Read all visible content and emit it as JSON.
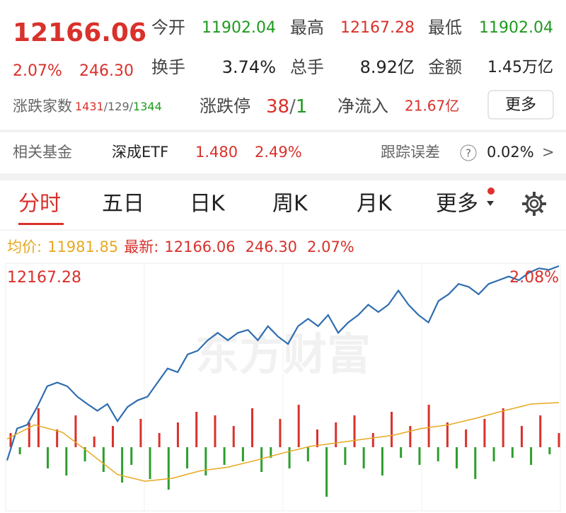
{
  "header": {
    "price": "12166.06",
    "change_pct": "2.07%",
    "change": "246.30"
  },
  "stats": [
    {
      "label": "今开",
      "value": "11902.04"
    },
    {
      "label": "最高",
      "value": "12167.28"
    },
    {
      "label": "最低",
      "value": "11902.04"
    },
    {
      "label": "换手",
      "value": "3.74%"
    },
    {
      "label": "总手",
      "value": "8.92亿"
    },
    {
      "label": "金额",
      "value": "1.45万亿"
    }
  ],
  "breadth": {
    "label": "涨跌家数",
    "up": "1431",
    "flat": "129",
    "down": "1344",
    "separator": "/"
  },
  "limits": {
    "label": "涨跌停",
    "up": "38",
    "down": "1"
  },
  "netflow": {
    "label": "净流入",
    "value": "21.67亿"
  },
  "more_button": "更多",
  "fund": {
    "label": "相关基金",
    "name": "深成ETF",
    "price": "1.480",
    "change_pct": "2.49%",
    "tracking_label": "跟踪误差",
    "help": "?",
    "tracking_value": "0.02%",
    "arrow": ">"
  },
  "tabs": [
    "分时",
    "五日",
    "日K",
    "周K",
    "月K",
    "更多"
  ],
  "quote_line": {
    "avg_label": "均价:",
    "avg": "11981.85",
    "latest_label": "最新:",
    "latest": "12166.06",
    "change": "246.30",
    "change_pct": "2.07%"
  },
  "chart_data": {
    "type": "line",
    "top_label": "12167.28",
    "top_right_label": "2.08%",
    "watermark": "东方财富",
    "ylim": [
      11858,
      12168
    ],
    "series": [
      {
        "color": "#2f6db0",
        "values": [
          11905,
          11948,
          11953,
          11977,
          12005,
          12010,
          12005,
          11991,
          11981,
          11972,
          11981,
          11958,
          11977,
          11986,
          11991,
          12010,
          12029,
          12024,
          12048,
          12053,
          12067,
          12077,
          12067,
          12077,
          12081,
          12067,
          12086,
          12072,
          12062,
          12086,
          12096,
          12086,
          12101,
          12077,
          12091,
          12101,
          12115,
          12105,
          12115,
          12134,
          12115,
          12101,
          12091,
          12120,
          12129,
          12143,
          12139,
          12129,
          12143,
          12148,
          12153,
          12148,
          12158,
          12164,
          12162,
          12167
        ]
      },
      {
        "color": "#e8a820",
        "values": [
          11934,
          11953,
          11943,
          11915,
          11886,
          11877,
          11881,
          11891,
          11896,
          11905,
          11915,
          11924,
          11929,
          11934,
          11939,
          11948,
          11953,
          11962,
          11972,
          11981,
          11983
        ]
      }
    ],
    "volume": {
      "ylim": [
        -90,
        90
      ],
      "up_color": "#d9312b",
      "down_color": "#2e9e2e",
      "values": [
        20,
        -10,
        35,
        55,
        -30,
        25,
        -40,
        45,
        -20,
        15,
        -35,
        30,
        -50,
        -25,
        40,
        -45,
        20,
        -60,
        35,
        -30,
        50,
        -40,
        45,
        -25,
        30,
        -20,
        55,
        -35,
        -15,
        40,
        -30,
        60,
        -20,
        25,
        -70,
        35,
        -25,
        45,
        -30,
        20,
        -40,
        50,
        -15,
        30,
        -25,
        60,
        -20,
        35,
        -30,
        25,
        -45,
        40,
        -20,
        55,
        -15,
        30,
        -25,
        45,
        -10,
        20
      ]
    }
  }
}
